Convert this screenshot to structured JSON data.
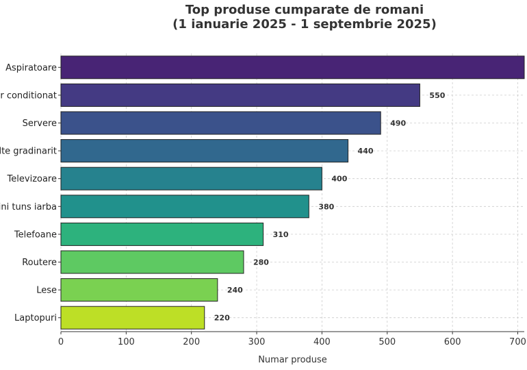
{
  "chart_data": {
    "type": "bar",
    "orientation": "horizontal",
    "title": "Top produse cumparate de romani",
    "subtitle": "(1 ianuarie 2025 - 1 septembrie 2025)",
    "xlabel": "Numar produse",
    "ylabel": "",
    "xlim": [
      0,
      710
    ],
    "x_ticks": [
      0,
      100,
      200,
      300,
      400,
      500,
      600,
      700
    ],
    "grid": true,
    "legend": "none",
    "categories": [
      "Aspiratoare",
      "Aer conditionat",
      "Servere",
      "Unelte gradinarit",
      "Televizoare",
      "Masini tuns iarba",
      "Telefoane",
      "Routere",
      "Lese",
      "Laptopuri"
    ],
    "values": [
      710,
      550,
      490,
      440,
      400,
      380,
      310,
      280,
      240,
      220
    ],
    "data_labels": [
      "",
      "550",
      "490",
      "440",
      "400",
      "380",
      "310",
      "280",
      "240",
      "220"
    ],
    "colors": [
      "#482475",
      "#443a83",
      "#3b528b",
      "#31688e",
      "#26828e",
      "#21918c",
      "#2db27d",
      "#5ec962",
      "#7ad151",
      "#bddf26"
    ]
  }
}
